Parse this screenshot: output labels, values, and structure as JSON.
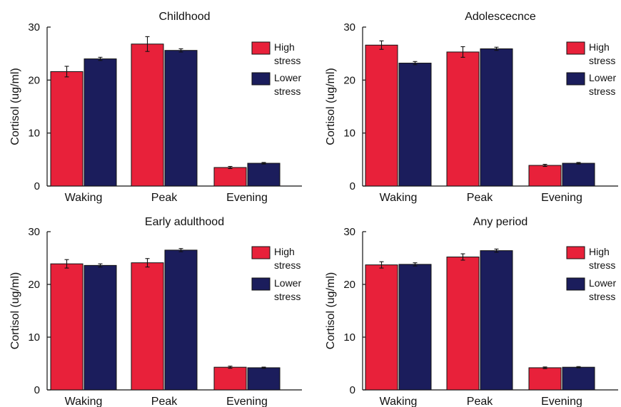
{
  "chart_data": [
    {
      "type": "bar",
      "title": "Childhood",
      "categories": [
        "Waking",
        "Peak",
        "Evening"
      ],
      "ylabel": "Cortisol (ug/ml)",
      "xlabel": "",
      "ylim": [
        0,
        30
      ],
      "yticks": [
        0,
        10,
        20,
        30
      ],
      "legend_position": "top-right",
      "series": [
        {
          "name": "High stress",
          "legend_lines": [
            "High",
            "stress"
          ],
          "color": "#e8213a",
          "values": [
            21.6,
            26.8,
            3.5
          ],
          "errors": [
            1.0,
            1.4,
            0.2
          ]
        },
        {
          "name": "Lower stress",
          "legend_lines": [
            "Lower",
            "stress"
          ],
          "color": "#1b1d5c",
          "values": [
            24.0,
            25.6,
            4.3
          ],
          "errors": [
            0.3,
            0.3,
            0.15
          ]
        }
      ]
    },
    {
      "type": "bar",
      "title": "Adolescecnce",
      "categories": [
        "Waking",
        "Peak",
        "Evening"
      ],
      "ylabel": "Cortisol (ug/ml)",
      "xlabel": "",
      "ylim": [
        0,
        30
      ],
      "yticks": [
        0,
        10,
        20,
        30
      ],
      "legend_position": "top-right",
      "series": [
        {
          "name": "High stress",
          "legend_lines": [
            "High",
            "stress"
          ],
          "color": "#e8213a",
          "values": [
            26.6,
            25.3,
            3.9
          ],
          "errors": [
            0.8,
            1.0,
            0.2
          ]
        },
        {
          "name": "Lower stress",
          "legend_lines": [
            "Lower",
            "stress"
          ],
          "color": "#1b1d5c",
          "values": [
            23.2,
            25.9,
            4.3
          ],
          "errors": [
            0.3,
            0.3,
            0.15
          ]
        }
      ]
    },
    {
      "type": "bar",
      "title": "Early adulthood",
      "categories": [
        "Waking",
        "Peak",
        "Evening"
      ],
      "ylabel": "Cortisol (ug/ml)",
      "xlabel": "",
      "ylim": [
        0,
        30
      ],
      "yticks": [
        0,
        10,
        20,
        30
      ],
      "legend_position": "top-right",
      "series": [
        {
          "name": "High stress",
          "legend_lines": [
            "High",
            "stress"
          ],
          "color": "#e8213a",
          "values": [
            23.9,
            24.1,
            4.3
          ],
          "errors": [
            0.8,
            0.8,
            0.2
          ]
        },
        {
          "name": "Lower stress",
          "legend_lines": [
            "Lower",
            "stress"
          ],
          "color": "#1b1d5c",
          "values": [
            23.6,
            26.5,
            4.2
          ],
          "errors": [
            0.3,
            0.3,
            0.12
          ]
        }
      ]
    },
    {
      "type": "bar",
      "title": "Any period",
      "categories": [
        "Waking",
        "Peak",
        "Evening"
      ],
      "ylabel": "Cortisol (ug/ml)",
      "xlabel": "",
      "ylim": [
        0,
        30
      ],
      "yticks": [
        0,
        10,
        20,
        30
      ],
      "legend_position": "top-right",
      "series": [
        {
          "name": "High stress",
          "legend_lines": [
            "High",
            "stress"
          ],
          "color": "#e8213a",
          "values": [
            23.7,
            25.2,
            4.2
          ],
          "errors": [
            0.6,
            0.6,
            0.15
          ]
        },
        {
          "name": "Lower stress",
          "legend_lines": [
            "Lower",
            "stress"
          ],
          "color": "#1b1d5c",
          "values": [
            23.8,
            26.4,
            4.3
          ],
          "errors": [
            0.3,
            0.3,
            0.12
          ]
        }
      ]
    }
  ]
}
